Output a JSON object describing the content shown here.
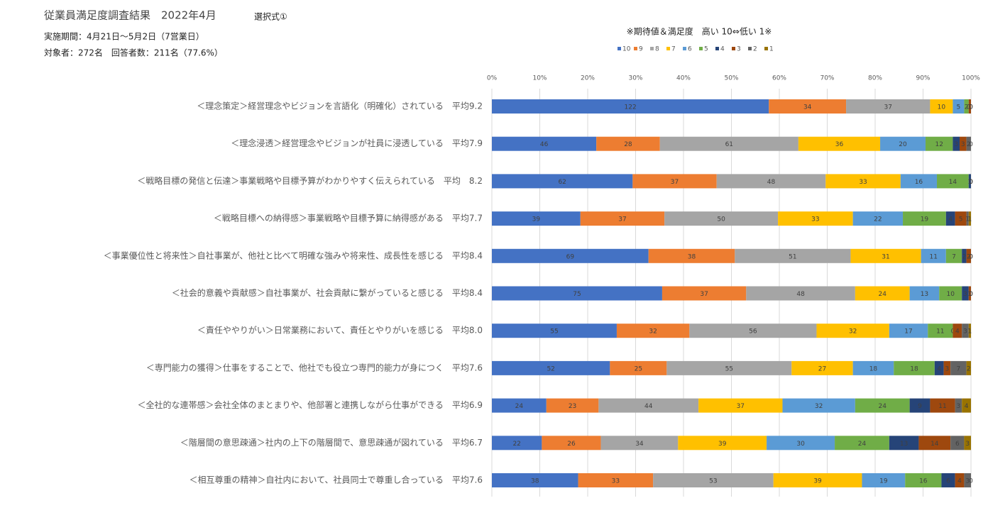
{
  "header": {
    "title": "従業員満足度調査結果　2022年4月",
    "tag": "選択式①",
    "period": "実施期間：4月21日～5月2日（7営業日）",
    "target": "対象者：272名　回答者数：211名（77.6%）"
  },
  "chart_data": {
    "type": "stacked_bar_100",
    "orientation": "horizontal",
    "title": "※期待値＆満足度　高い 10⇔低い 1※",
    "categories": [
      "＜理念策定＞経営理念やビジョンを言語化（明確化）されている　平均9.2",
      "＜理念浸透＞経営理念やビジョンが社員に浸透している　平均7.9",
      "＜戦略目標の発信と伝達＞事業戦略や目標予算がわかりやすく伝えられている　平均　8.2",
      "＜戦略目標への納得感＞事業戦略や目標予算に納得感がある　平均7.7",
      "＜事業優位性と将来性＞自社事業が、他社と比べて明確な強みや将来性、成長性を感じる　平均8.4",
      "＜社会的意義や貢献感＞自社事業が、社会貢献に繋がっていると感じる　平均8.4",
      "＜責任ややりがい＞日常業務において、責任とやりがいを感じる　平均8.0",
      "＜専門能力の獲得＞仕事をすることで、他社でも役立つ専門的能力が身につく　平均7.6",
      "＜全社的な連帯感＞会社全体のまとまりや、他部署と連携しながら仕事ができる　平均6.9",
      "＜階層間の意思疎通＞社内の上下の階層間で、意思疎通が図れている　平均6.7",
      "＜相互尊重の精神＞自社内において、社員同士で尊重し合っている　平均7.6"
    ],
    "series": [
      {
        "name": "10",
        "color": "#4472c4",
        "values": [
          122,
          46,
          62,
          39,
          69,
          75,
          55,
          52,
          24,
          22,
          38
        ]
      },
      {
        "name": "9",
        "color": "#ed7d31",
        "values": [
          34,
          28,
          37,
          37,
          38,
          37,
          32,
          25,
          23,
          26,
          33
        ]
      },
      {
        "name": "8",
        "color": "#a5a5a5",
        "values": [
          37,
          61,
          48,
          50,
          51,
          48,
          56,
          55,
          44,
          34,
          53
        ]
      },
      {
        "name": "7",
        "color": "#ffc000",
        "values": [
          10,
          36,
          33,
          33,
          31,
          24,
          32,
          27,
          37,
          39,
          39
        ]
      },
      {
        "name": "6",
        "color": "#5b9bd5",
        "values": [
          5,
          20,
          16,
          22,
          11,
          13,
          17,
          18,
          32,
          30,
          19
        ]
      },
      {
        "name": "5",
        "color": "#70ad47",
        "values": [
          2,
          12,
          14,
          19,
          7,
          10,
          11,
          18,
          24,
          24,
          16
        ]
      },
      {
        "name": "4",
        "color": "#264478",
        "values": [
          0,
          3,
          1,
          4,
          2,
          3,
          0,
          4,
          9,
          13,
          6
        ]
      },
      {
        "name": "3",
        "color": "#9e480e",
        "values": [
          1,
          3,
          0,
          5,
          2,
          1,
          4,
          3,
          11,
          14,
          4
        ]
      },
      {
        "name": "2",
        "color": "#636363",
        "values": [
          0,
          2,
          0,
          1,
          0,
          0,
          3,
          7,
          3,
          6,
          3
        ]
      },
      {
        "name": "1",
        "color": "#997300",
        "values": [
          0,
          0,
          0,
          1,
          0,
          0,
          1,
          2,
          4,
          3,
          0
        ]
      }
    ],
    "xlim": [
      0,
      100
    ],
    "xticks": [
      {
        "value": 0,
        "label": "0%"
      },
      {
        "value": 10,
        "label": "10%"
      },
      {
        "value": 20,
        "label": "20%"
      },
      {
        "value": 30,
        "label": "30%"
      },
      {
        "value": 40,
        "label": "40%"
      },
      {
        "value": 50,
        "label": "50%"
      },
      {
        "value": 60,
        "label": "60%"
      },
      {
        "value": 70,
        "label": "70%"
      },
      {
        "value": 80,
        "label": "80%"
      },
      {
        "value": 90,
        "label": "90%"
      },
      {
        "value": 100,
        "label": "100%"
      }
    ],
    "grid": true,
    "legend": "top"
  }
}
